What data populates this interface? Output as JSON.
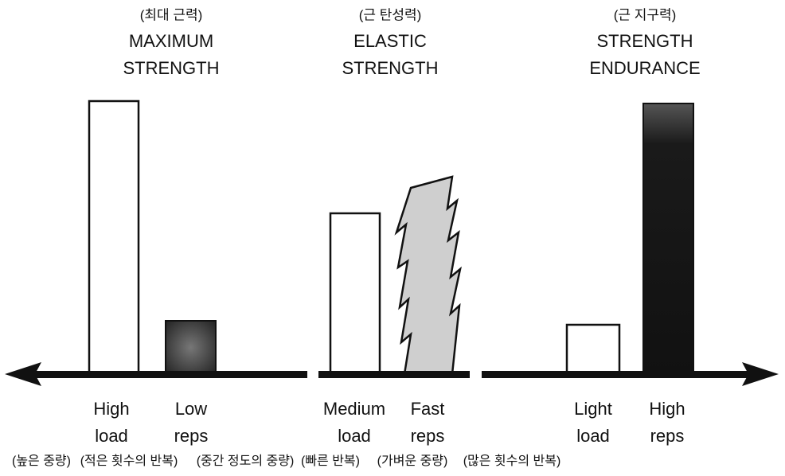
{
  "groups": [
    {
      "korean": "(최대 근력)",
      "title": [
        "MAXIMUM",
        "STRENGTH"
      ],
      "bars": [
        {
          "label": [
            "High",
            "load"
          ],
          "korean": "(높은 중량)"
        },
        {
          "label": [
            "Low",
            "reps"
          ],
          "korean": "(적은 횟수의 반복)"
        }
      ]
    },
    {
      "korean": "(근 탄성력)",
      "title": [
        "ELASTIC",
        "STRENGTH"
      ],
      "bars": [
        {
          "label": [
            "Medium",
            "load"
          ],
          "korean": "(중간 정도의 중량)"
        },
        {
          "label": [
            "Fast",
            "reps"
          ],
          "korean": "(빠른 반복)"
        }
      ]
    },
    {
      "korean": "(근 지구력)",
      "title": [
        "STRENGTH",
        "ENDURANCE"
      ],
      "bars": [
        {
          "label": [
            "Light",
            "load"
          ],
          "korean": "(가벼운 중량)"
        },
        {
          "label": [
            "High",
            "reps"
          ],
          "korean": "(많은 횟수의 반복)"
        }
      ]
    }
  ]
}
